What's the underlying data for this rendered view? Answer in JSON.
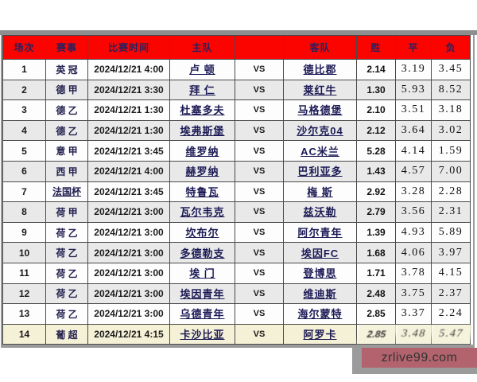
{
  "labels": {
    "vs": "VS"
  },
  "header": {
    "columns": [
      "场次",
      "赛事",
      "比赛时间",
      "主队",
      "",
      "客队",
      "胜",
      "平",
      "负"
    ]
  },
  "rows": [
    {
      "no": "1",
      "league": "英 冠",
      "time": "2024/12/21 4:00",
      "home": "卢  顿",
      "away": "德比郡",
      "win": "2.14",
      "draw": "3.19",
      "lose": "3.45"
    },
    {
      "no": "2",
      "league": "德 甲",
      "time": "2024/12/21 3:30",
      "home": "拜  仁",
      "away": "莱红牛",
      "win": "1.30",
      "draw": "5.93",
      "lose": "8.52"
    },
    {
      "no": "3",
      "league": "德 乙",
      "time": "2024/12/21 1:30",
      "home": "杜塞多夫",
      "away": "马格德堡",
      "win": "2.10",
      "draw": "3.51",
      "lose": "3.18"
    },
    {
      "no": "4",
      "league": "德 乙",
      "time": "2024/12/21 1:30",
      "home": "埃弗斯堡",
      "away": "沙尔克04",
      "win": "2.12",
      "draw": "3.64",
      "lose": "3.02"
    },
    {
      "no": "5",
      "league": "意 甲",
      "time": "2024/12/21 3:45",
      "home": "维罗纳",
      "away": "AC米兰",
      "win": "5.28",
      "draw": "4.14",
      "lose": "1.59"
    },
    {
      "no": "6",
      "league": "西 甲",
      "time": "2024/12/21 4:00",
      "home": "赫罗纳",
      "away": "巴利亚多",
      "win": "1.43",
      "draw": "4.57",
      "lose": "7.00"
    },
    {
      "no": "7",
      "league": "法国杯",
      "time": "2024/12/21 3:45",
      "home": "特鲁瓦",
      "away": "梅  斯",
      "win": "2.92",
      "draw": "3.28",
      "lose": "2.28",
      "leagueUnderline": true
    },
    {
      "no": "8",
      "league": "荷 甲",
      "time": "2024/12/21 3:00",
      "home": "瓦尔韦克",
      "away": "兹沃勒",
      "win": "2.79",
      "draw": "3.56",
      "lose": "2.31"
    },
    {
      "no": "9",
      "league": "荷 乙",
      "time": "2024/12/21 3:00",
      "home": "坎布尔",
      "away": "阿尔青年",
      "win": "1.39",
      "draw": "4.93",
      "lose": "5.89"
    },
    {
      "no": "10",
      "league": "荷 乙",
      "time": "2024/12/21 3:00",
      "home": "多德勒支",
      "away": "埃因FC",
      "win": "1.68",
      "draw": "4.06",
      "lose": "3.97"
    },
    {
      "no": "11",
      "league": "荷 乙",
      "time": "2024/12/21 3:00",
      "home": "埃  门",
      "away": "登博思",
      "win": "1.71",
      "draw": "3.78",
      "lose": "4.15"
    },
    {
      "no": "12",
      "league": "荷 乙",
      "time": "2024/12/21 3:00",
      "home": "埃因青年",
      "away": "维迪斯",
      "win": "2.48",
      "draw": "3.75",
      "lose": "2.37"
    },
    {
      "no": "13",
      "league": "荷 乙",
      "time": "2024/12/21 3:00",
      "home": "乌德青年",
      "away": "海尔蒙特",
      "win": "2.85",
      "draw": "3.37",
      "lose": "2.24"
    },
    {
      "no": "14",
      "league": "葡 超",
      "time": "2024/12/21 4:15",
      "home": "卡沙比亚",
      "away": "阿罗卡",
      "win": "2.85",
      "draw": "3.48",
      "lose": "5.47",
      "highlight": true,
      "distorted": true
    }
  ],
  "watermark": {
    "text": "zrlive99.com"
  },
  "colors": {
    "header_bg": "#fb0400",
    "header_text": "#28215e",
    "row_even_bg": "#e9e9e9",
    "row_highlight_bg": "#f5f1d6",
    "team_link": "#1c1a55",
    "watermark_bg": "#b2636d",
    "border": "#4a4a4a"
  }
}
